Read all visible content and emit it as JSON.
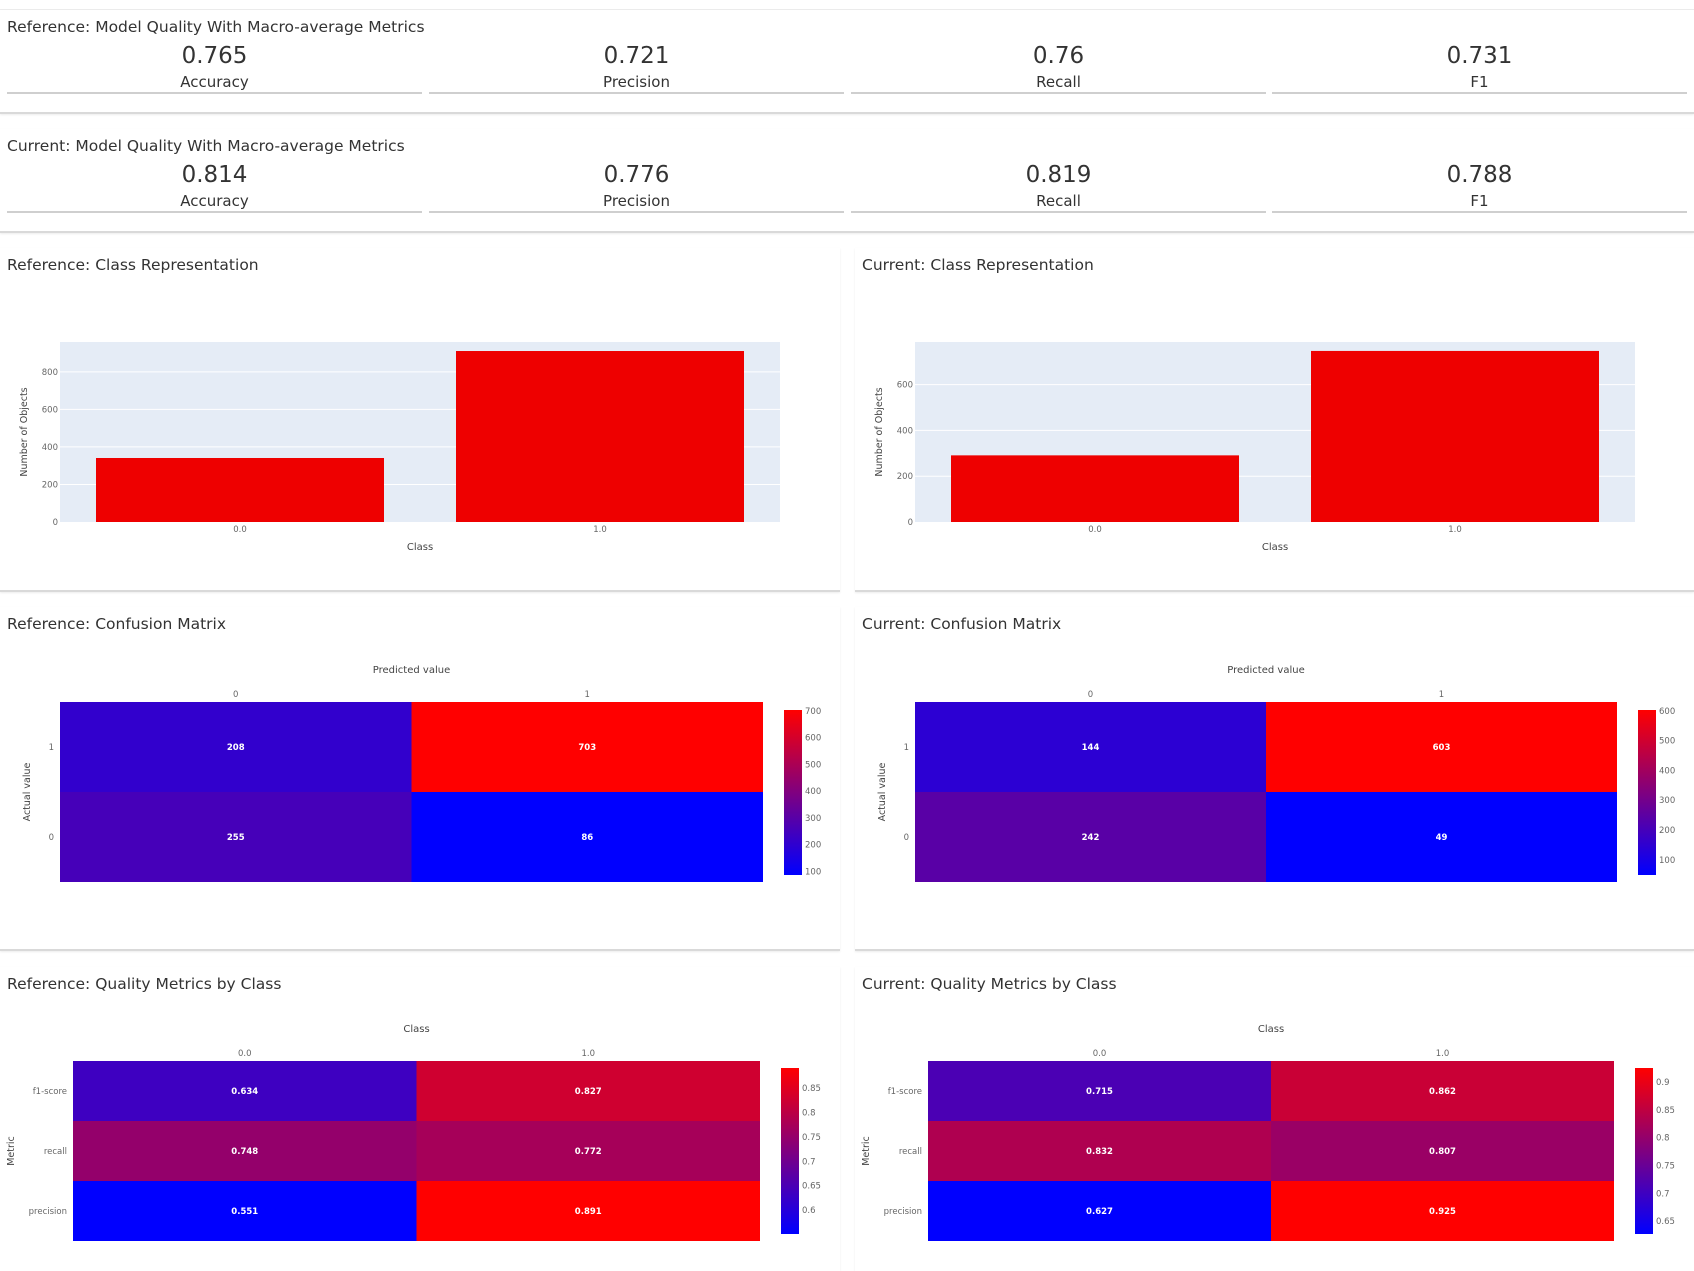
{
  "reference_metrics": {
    "title": "Reference: Model Quality With Macro-average Metrics",
    "cards": [
      {
        "value": "0.765",
        "label": "Accuracy"
      },
      {
        "value": "0.721",
        "label": "Precision"
      },
      {
        "value": "0.76",
        "label": "Recall"
      },
      {
        "value": "0.731",
        "label": "F1"
      }
    ]
  },
  "current_metrics": {
    "title": "Current: Model Quality With Macro-average Metrics",
    "cards": [
      {
        "value": "0.814",
        "label": "Accuracy"
      },
      {
        "value": "0.776",
        "label": "Precision"
      },
      {
        "value": "0.819",
        "label": "Recall"
      },
      {
        "value": "0.788",
        "label": "F1"
      }
    ]
  },
  "colors": {
    "bar": "#ee0000",
    "heat_low": "#0000ff",
    "heat_high": "#ff0000",
    "plot_bg": "#e5ecf6"
  },
  "chart_data": [
    {
      "id": "ref_class_rep",
      "type": "bar",
      "title": "Reference: Class Representation",
      "categories": [
        "0.0",
        "1.0"
      ],
      "values": [
        341,
        911
      ],
      "xlabel": "Class",
      "ylabel": "Number of Objects",
      "ylim": [
        0,
        959
      ],
      "yticks": [
        0,
        200,
        400,
        600,
        800
      ]
    },
    {
      "id": "cur_class_rep",
      "type": "bar",
      "title": "Current: Class Representation",
      "categories": [
        "0.0",
        "1.0"
      ],
      "values": [
        291,
        747
      ],
      "xlabel": "Class",
      "ylabel": "Number of Objects",
      "ylim": [
        0,
        786
      ],
      "yticks": [
        0,
        200,
        400,
        600
      ]
    },
    {
      "id": "ref_confusion",
      "type": "heatmap",
      "title": "Reference: Confusion Matrix",
      "xlabel": "Predicted value",
      "ylabel": "Actual value",
      "x": [
        "0",
        "1"
      ],
      "y": [
        "1",
        "0"
      ],
      "z": [
        [
          208,
          703
        ],
        [
          255,
          86
        ]
      ],
      "zlim": [
        86,
        703
      ],
      "colorbar_ticks": [
        100,
        200,
        300,
        400,
        500,
        600,
        700
      ]
    },
    {
      "id": "cur_confusion",
      "type": "heatmap",
      "title": "Current: Confusion Matrix",
      "xlabel": "Predicted value",
      "ylabel": "Actual value",
      "x": [
        "0",
        "1"
      ],
      "y": [
        "1",
        "0"
      ],
      "z": [
        [
          144,
          603
        ],
        [
          242,
          49
        ]
      ],
      "zlim": [
        49,
        603
      ],
      "colorbar_ticks": [
        100,
        200,
        300,
        400,
        500,
        600
      ]
    },
    {
      "id": "ref_quality_by_class",
      "type": "heatmap",
      "title": "Reference: Quality Metrics by Class",
      "xlabel": "Class",
      "ylabel": "Metric",
      "x": [
        "0.0",
        "1.0"
      ],
      "y": [
        "f1-score",
        "recall",
        "precision"
      ],
      "z": [
        [
          0.634,
          0.827
        ],
        [
          0.748,
          0.772
        ],
        [
          0.551,
          0.891
        ]
      ],
      "zlim": [
        0.551,
        0.891
      ],
      "colorbar_ticks": [
        0.6,
        0.65,
        0.7,
        0.75,
        0.8,
        0.85
      ]
    },
    {
      "id": "cur_quality_by_class",
      "type": "heatmap",
      "title": "Current: Quality Metrics by Class",
      "xlabel": "Class",
      "ylabel": "Metric",
      "x": [
        "0.0",
        "1.0"
      ],
      "y": [
        "f1-score",
        "recall",
        "precision"
      ],
      "z": [
        [
          0.715,
          0.862
        ],
        [
          0.832,
          0.807
        ],
        [
          0.627,
          0.925
        ]
      ],
      "zlim": [
        0.627,
        0.925
      ],
      "colorbar_ticks": [
        0.65,
        0.7,
        0.75,
        0.8,
        0.85,
        0.9
      ]
    }
  ]
}
